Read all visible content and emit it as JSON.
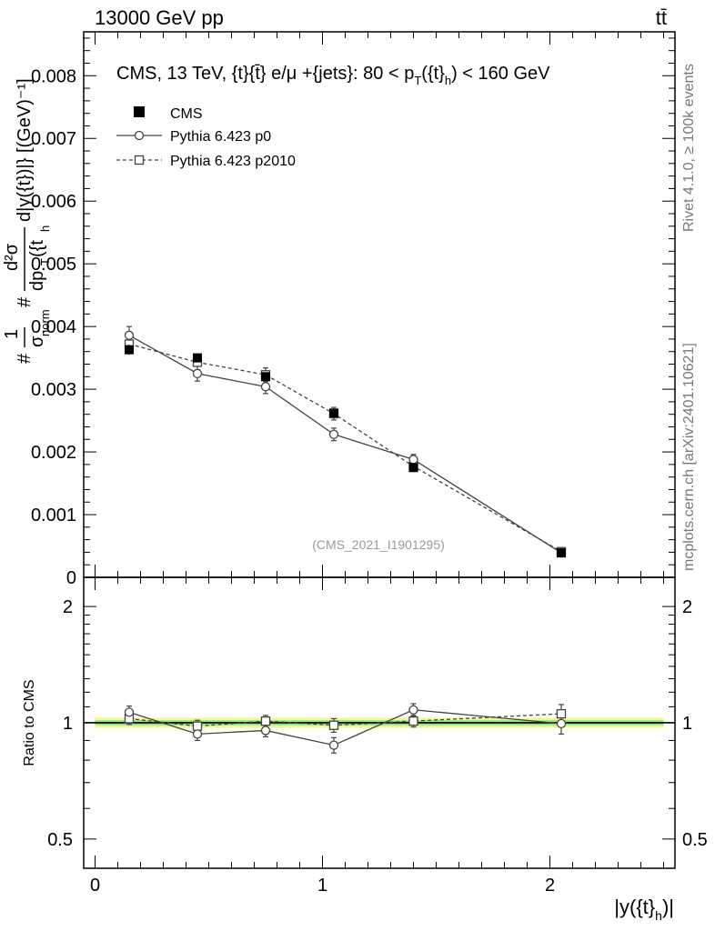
{
  "header": {
    "beam": "13000 GeV pp",
    "process": "tt̄"
  },
  "side_text": {
    "rivet": "Rivet 4.1.0, ≥ 100k events",
    "mcplots": "mcplots.cern.ch [arXiv:2401.10621]"
  },
  "chart_data": [
    {
      "type": "line",
      "title": "CMS, 13 TeV, {t}{t̄} e/μ +{jets}: 80 <  p_T({t}_h) < 160 GeV",
      "title_parts": {
        "main": "CMS, 13 TeV, {t}{t̄} e/μ +{jets}: 80 <  p",
        "sub_T": "T",
        "paren_open": "({t}",
        "sub_h": "h",
        "tail": ") < 160 GeV"
      },
      "analysis_id": "(CMS_2021_I1901295)",
      "ylabel_parts": {
        "hash1": "#",
        "frac1_num": "1",
        "frac1_den": "σ",
        "frac1_den_sub": "norm",
        "hash2": "#",
        "frac2_num": "d²σ",
        "frac2_den": "dp",
        "frac2_den_sub": "T",
        "frac2_den_tail": "({t",
        "frac2_den_tail_sub": "h",
        "tail": "d|y({t})|} [(GeV)⁻¹]"
      },
      "ylim": [
        0,
        0.0087
      ],
      "yticks": [
        0.001,
        0.002,
        0.003,
        0.004,
        0.005,
        0.006,
        0.007,
        0.008
      ],
      "ytick_labels": [
        "0.001",
        "0.002",
        "0.003",
        "0.004",
        "0.005",
        "0.006",
        "0.007",
        "0.008"
      ],
      "ytick_zero": "0",
      "xlim": [
        -0.05,
        2.55
      ],
      "legend": [
        "CMS",
        "Pythia 6.423 p0",
        "Pythia 6.423 p2010"
      ],
      "series": [
        {
          "name": "CMS",
          "x": [
            0.15,
            0.45,
            0.75,
            1.05,
            1.4,
            2.05
          ],
          "y": [
            0.00363,
            0.0035,
            0.0032,
            0.00262,
            0.00175,
            0.00039
          ],
          "err": [
            8e-05,
            7e-05,
            7e-05,
            6e-05,
            5e-05,
            2e-05
          ]
        },
        {
          "name": "Pythia 6.423 p0",
          "x": [
            0.15,
            0.45,
            0.75,
            1.05,
            1.4,
            2.05
          ],
          "y": [
            0.00386,
            0.00325,
            0.00304,
            0.00228,
            0.00188,
            0.00039
          ],
          "err": [
            0.00014,
            0.00012,
            0.00011,
            0.0001,
            8e-05,
            2e-05
          ]
        },
        {
          "name": "Pythia 6.423 p2010",
          "x": [
            0.15,
            0.45,
            0.75,
            1.05,
            1.4,
            2.05
          ],
          "y": [
            0.00372,
            0.00343,
            0.00323,
            0.00261,
            0.00177,
            0.00041
          ],
          "err": [
            0.00013,
            0.00012,
            0.00011,
            0.0001,
            7e-05,
            3e-05
          ]
        }
      ]
    },
    {
      "type": "line",
      "ylabel": "Ratio to CMS",
      "xlabel_parts": {
        "main": "|y({t}",
        "sub_h": "h",
        "tail": ")|"
      },
      "ylim": [
        0.42,
        2.38
      ],
      "yscale": "log",
      "yticks": [
        0.5,
        1,
        2
      ],
      "ytick_labels": [
        "0.5",
        "1",
        "2"
      ],
      "xticks": [
        0,
        1,
        2
      ],
      "xtick_labels": [
        "0",
        "1",
        "2"
      ],
      "xlim": [
        -0.05,
        2.55
      ],
      "band": {
        "x": [
          0,
          2.5
        ],
        "inner": 0.015,
        "outer": 0.03
      },
      "series": [
        {
          "name": "Pythia 6.423 p0",
          "x": [
            0.15,
            0.45,
            0.75,
            1.05,
            1.4,
            2.05
          ],
          "y": [
            1.065,
            0.935,
            0.955,
            0.875,
            1.08,
            0.995
          ],
          "err": [
            0.04,
            0.035,
            0.035,
            0.04,
            0.04,
            0.06
          ]
        },
        {
          "name": "Pythia 6.423 p2010",
          "x": [
            0.15,
            0.45,
            0.75,
            1.05,
            1.4,
            2.05
          ],
          "y": [
            1.025,
            0.98,
            1.01,
            0.985,
            1.01,
            1.055
          ],
          "err": [
            0.035,
            0.035,
            0.035,
            0.04,
            0.035,
            0.06
          ]
        }
      ]
    }
  ]
}
